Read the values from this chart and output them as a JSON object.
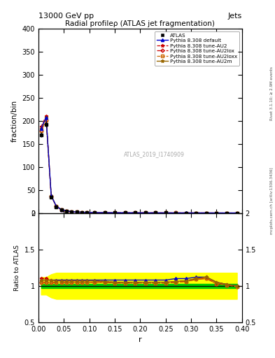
{
  "title_top": "13000 GeV pp",
  "title_top_right": "Jets",
  "title_main": "Radial profileρ (ATLAS jet fragmentation)",
  "watermark": "ATLAS_2019_I1740909",
  "ylabel_main": "fraction/bin",
  "ylabel_ratio": "Ratio to ATLAS",
  "xlabel": "r",
  "right_label_top": "Rivet 3.1.10; ≥ 2.9M events",
  "right_label_bottom": "mcplots.cern.ch [arXiv:1306.3436]",
  "xlim": [
    0.0,
    0.4
  ],
  "ylim_main": [
    0,
    400
  ],
  "ylim_ratio": [
    0.5,
    2.0
  ],
  "yticks_main": [
    0,
    50,
    100,
    150,
    200,
    250,
    300,
    350,
    400
  ],
  "r_values": [
    0.005,
    0.015,
    0.025,
    0.035,
    0.045,
    0.055,
    0.065,
    0.075,
    0.085,
    0.095,
    0.11,
    0.13,
    0.15,
    0.17,
    0.19,
    0.21,
    0.23,
    0.25,
    0.27,
    0.29,
    0.31,
    0.33,
    0.35,
    0.37,
    0.39
  ],
  "atlas_values": [
    170,
    192,
    35,
    14,
    7,
    4.5,
    3,
    2.2,
    1.8,
    1.5,
    1.2,
    1.0,
    0.85,
    0.75,
    0.7,
    0.65,
    0.6,
    0.55,
    0.52,
    0.5,
    0.48,
    0.46,
    0.44,
    0.43,
    0.42
  ],
  "atlas_errors": [
    5,
    6,
    1.5,
    0.7,
    0.4,
    0.25,
    0.15,
    0.1,
    0.08,
    0.07,
    0.06,
    0.05,
    0.04,
    0.03,
    0.03,
    0.03,
    0.03,
    0.03,
    0.02,
    0.02,
    0.02,
    0.02,
    0.02,
    0.02,
    0.02
  ],
  "default_ratio": [
    1.08,
    1.08,
    1.08,
    1.08,
    1.08,
    1.08,
    1.08,
    1.08,
    1.08,
    1.08,
    1.08,
    1.08,
    1.08,
    1.08,
    1.08,
    1.08,
    1.08,
    1.08,
    1.1,
    1.1,
    1.12,
    1.12,
    1.05,
    1.02,
    1.0
  ],
  "au2_ratio": [
    1.1,
    1.1,
    1.08,
    1.07,
    1.07,
    1.07,
    1.07,
    1.07,
    1.07,
    1.07,
    1.07,
    1.06,
    1.05,
    1.05,
    1.05,
    1.05,
    1.05,
    1.05,
    1.06,
    1.07,
    1.1,
    1.12,
    1.05,
    1.02,
    1.0
  ],
  "au2lox_ratio": [
    1.05,
    1.05,
    1.05,
    1.05,
    1.05,
    1.05,
    1.05,
    1.05,
    1.05,
    1.05,
    1.05,
    1.05,
    1.04,
    1.04,
    1.04,
    1.04,
    1.04,
    1.04,
    1.05,
    1.06,
    1.09,
    1.1,
    1.03,
    1.01,
    0.99
  ],
  "au2loxx_ratio": [
    1.05,
    1.05,
    1.05,
    1.05,
    1.05,
    1.05,
    1.05,
    1.05,
    1.05,
    1.05,
    1.05,
    1.05,
    1.04,
    1.04,
    1.04,
    1.04,
    1.04,
    1.04,
    1.05,
    1.06,
    1.09,
    1.1,
    1.03,
    1.01,
    0.99
  ],
  "au2m_ratio": [
    1.08,
    1.08,
    1.08,
    1.07,
    1.07,
    1.07,
    1.07,
    1.07,
    1.07,
    1.07,
    1.07,
    1.06,
    1.05,
    1.05,
    1.05,
    1.05,
    1.05,
    1.05,
    1.06,
    1.07,
    1.1,
    1.12,
    1.05,
    1.02,
    1.0
  ],
  "green_band_lo": 0.97,
  "green_band_hi": 1.03,
  "yellow_band_lo": [
    0.88,
    0.88,
    0.84,
    0.82,
    0.82,
    0.82,
    0.82,
    0.82,
    0.82,
    0.82,
    0.82,
    0.82,
    0.82,
    0.82,
    0.82,
    0.82,
    0.82,
    0.82,
    0.82,
    0.82,
    0.82,
    0.82,
    0.82,
    0.82,
    0.82
  ],
  "yellow_band_hi": [
    1.12,
    1.12,
    1.16,
    1.18,
    1.18,
    1.18,
    1.18,
    1.18,
    1.18,
    1.18,
    1.18,
    1.18,
    1.18,
    1.18,
    1.18,
    1.18,
    1.18,
    1.18,
    1.18,
    1.18,
    1.18,
    1.18,
    1.18,
    1.18,
    1.18
  ],
  "color_atlas": "#000000",
  "color_default": "#0000cc",
  "color_au2": "#cc0000",
  "color_au2lox": "#cc0000",
  "color_au2loxx": "#cc6600",
  "color_au2m": "#996600",
  "color_green": "#00cc00",
  "color_yellow": "#ffff00",
  "bg_color": "#ffffff"
}
